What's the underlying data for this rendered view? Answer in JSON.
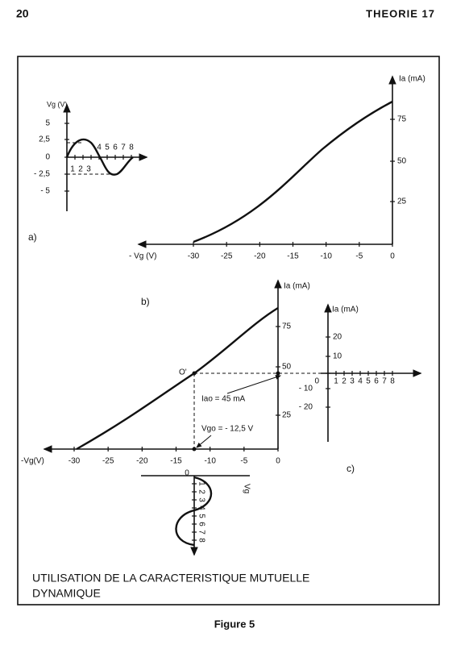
{
  "header": {
    "page_number": "20",
    "section": "THEORIE 17"
  },
  "figure_a": {
    "vg_axis_label": "Vg (V)",
    "vg_ticks": [
      "5",
      "2,5",
      "0",
      "- 2,5",
      "- 5"
    ],
    "time_ticks": [
      "1",
      "2",
      "3",
      "4",
      "5",
      "6",
      "7",
      "8"
    ],
    "panel_label": "a)"
  },
  "figure_b": {
    "ia_axis_label": "Ia (mA)",
    "ia_ticks": [
      "75",
      "50",
      "25"
    ],
    "vg_axis_label": "- Vg  (V)",
    "vg_ticks": [
      "-30",
      "-25",
      "-20",
      "-15",
      "-10",
      "-5",
      "0"
    ],
    "panel_label": "b)"
  },
  "figure_c": {
    "ia_axis_label": "Ia (mA)",
    "ia_ticks": [
      "75",
      "50",
      "25"
    ],
    "vg_axis_label": "-Vg(V)",
    "vg_ticks": [
      "-30",
      "-25",
      "-20",
      "-15",
      "-10",
      "-5",
      "0"
    ],
    "operating_point": "O'",
    "iao": "Iao = 45 mA",
    "vgo": "Vgo = - 12,5 V",
    "vg_wave_label": "Vg",
    "vg_wave_zero": "0",
    "vg_wave_ticks": [
      "1",
      "2",
      "3",
      "4",
      "5",
      "6",
      "7",
      "8"
    ],
    "out_ia_label": "Ia (mA)",
    "out_ticks": [
      "20",
      "10",
      "0",
      "- 10",
      "- 20"
    ],
    "out_time_ticks": [
      "1",
      "2",
      "3",
      "4",
      "5",
      "6",
      "7",
      "8"
    ],
    "panel_label": "c)"
  },
  "caption": {
    "line1": "UTILISATION DE LA CARACTERISTIQUE MUTUELLE",
    "line2": "DYNAMIQUE"
  },
  "figure_label": "Figure 5"
}
